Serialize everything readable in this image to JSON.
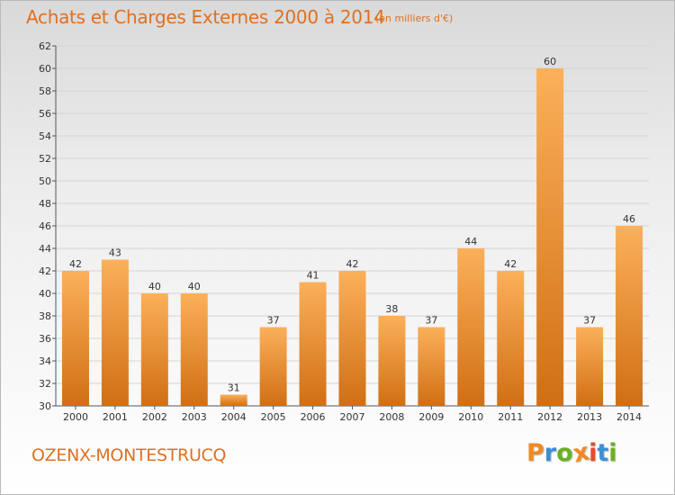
{
  "title": "Achats et Charges Externes 2000 à 2014",
  "subtitle": "(en milliers d'€)",
  "commune": "OZENX-MONTESTRUCQ",
  "logo": {
    "letters": [
      "P",
      "r",
      "o",
      "x",
      "i",
      "t",
      "i"
    ],
    "colors": [
      "#f08a24",
      "#3b8fd4",
      "#6ab023",
      "#f08a24",
      "#e54b2a",
      "#3b8fd4",
      "#6ab023"
    ]
  },
  "colors": {
    "bar_light": "#fbb05a",
    "bar_dark": "#d06f14",
    "accent": "#e07020"
  },
  "chart_data": {
    "type": "bar",
    "categories": [
      "2000",
      "2001",
      "2002",
      "2003",
      "2004",
      "2005",
      "2006",
      "2007",
      "2008",
      "2009",
      "2010",
      "2011",
      "2012",
      "2013",
      "2014"
    ],
    "values": [
      42,
      43,
      40,
      40,
      31,
      37,
      41,
      42,
      38,
      37,
      44,
      42,
      60,
      37,
      46
    ],
    "ylim": [
      30,
      62
    ],
    "yticks": [
      30,
      32,
      34,
      36,
      38,
      40,
      42,
      44,
      46,
      48,
      50,
      52,
      54,
      56,
      58,
      60,
      62
    ],
    "grid": true,
    "data_labels": true
  }
}
